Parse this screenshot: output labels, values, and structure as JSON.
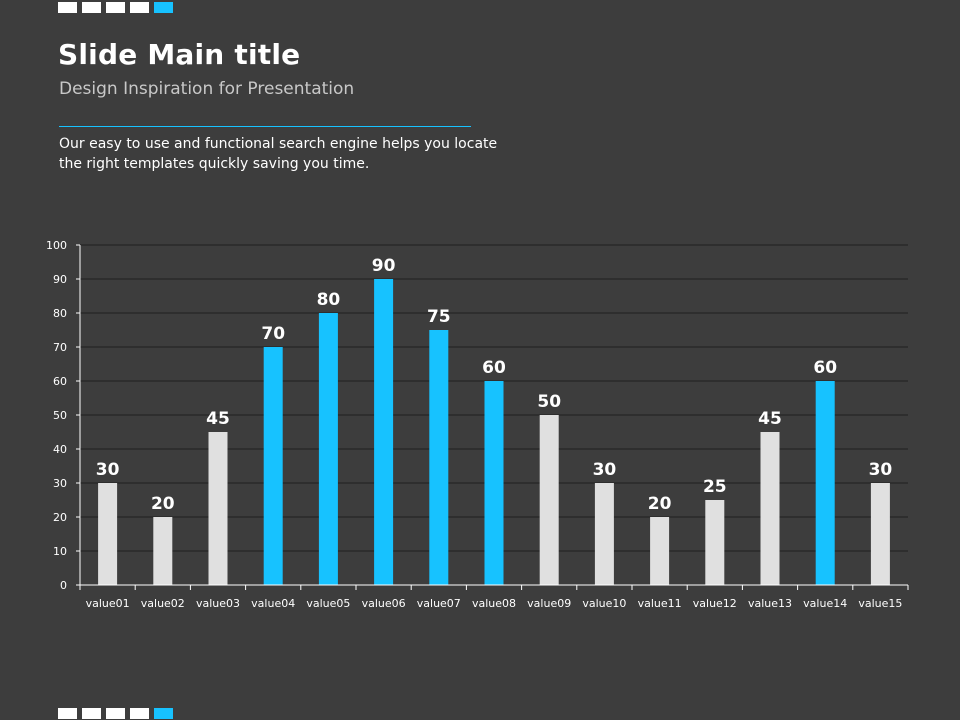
{
  "slide": {
    "title": "Slide Main title",
    "subtitle": "Design Inspiration for Presentation",
    "description": "Our easy to use and functional search engine helps you locate the right templates quickly saving you time."
  },
  "colors": {
    "background": "#3d3d3d",
    "accent": "#17c2ff",
    "neutral_bar": "#e0e0e0",
    "gridline": "#1f1f1f"
  },
  "chart_data": {
    "type": "bar",
    "title": "",
    "xlabel": "",
    "ylabel": "",
    "ylim": [
      0,
      100
    ],
    "yticks": [
      0,
      10,
      20,
      30,
      40,
      50,
      60,
      70,
      80,
      90,
      100
    ],
    "grid": true,
    "categories": [
      "value01",
      "value02",
      "value03",
      "value04",
      "value05",
      "value06",
      "value07",
      "value08",
      "value09",
      "value10",
      "value11",
      "value12",
      "value13",
      "value14",
      "value15"
    ],
    "values": [
      30,
      20,
      45,
      70,
      80,
      90,
      75,
      60,
      50,
      30,
      20,
      25,
      45,
      60,
      30
    ],
    "highlighted": [
      false,
      false,
      false,
      true,
      true,
      true,
      true,
      true,
      false,
      false,
      false,
      false,
      false,
      true,
      false
    ]
  }
}
